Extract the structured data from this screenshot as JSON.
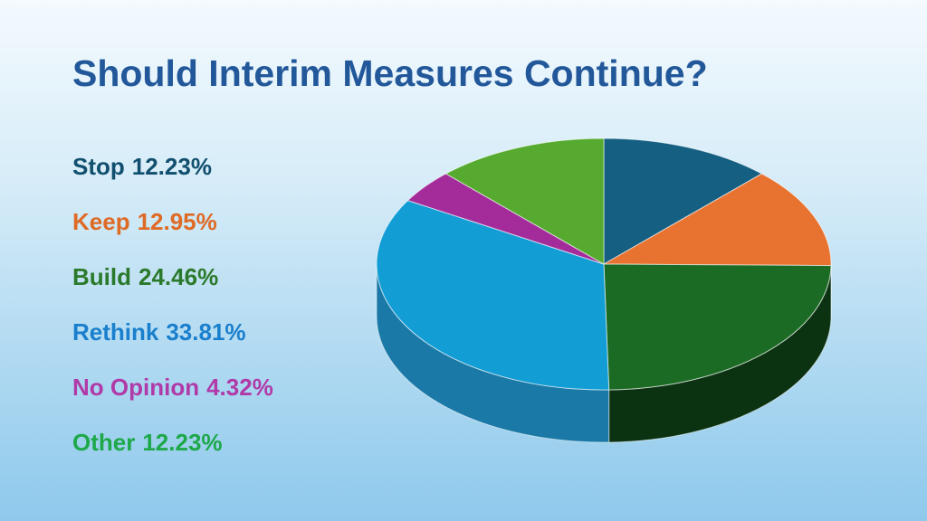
{
  "chart_data": {
    "type": "pie",
    "title": "Should Interim Measures Continue?",
    "slices": [
      {
        "label": "Stop",
        "value": 12.23,
        "display": "12.23%",
        "color": "#145f82",
        "side": "#0d4560",
        "text_color": "#124f6e"
      },
      {
        "label": "Keep",
        "value": 12.95,
        "display": "12.95%",
        "color": "#e8722f",
        "side": "#a44d1c",
        "text_color": "#de6a25"
      },
      {
        "label": "Build",
        "value": 24.46,
        "display": "24.46%",
        "color": "#1b6b24",
        "side": "#0b3211",
        "text_color": "#2b7a2b"
      },
      {
        "label": "Rethink",
        "value": 33.81,
        "display": "33.81%",
        "color": "#129dd5",
        "side": "#1a79a6",
        "text_color": "#1a7fcc"
      },
      {
        "label": "No Opinion",
        "value": 4.32,
        "display": "4.32%",
        "color": "#a32c9a",
        "side": "#6e1d68",
        "text_color": "#b03aa8"
      },
      {
        "label": "Other",
        "value": 12.23,
        "display": "12.23%",
        "color": "#55aa2f",
        "side": "#3a7a1f",
        "text_color": "#1ea84a"
      }
    ],
    "style": "3d-tilted",
    "legend_placement": "left"
  }
}
